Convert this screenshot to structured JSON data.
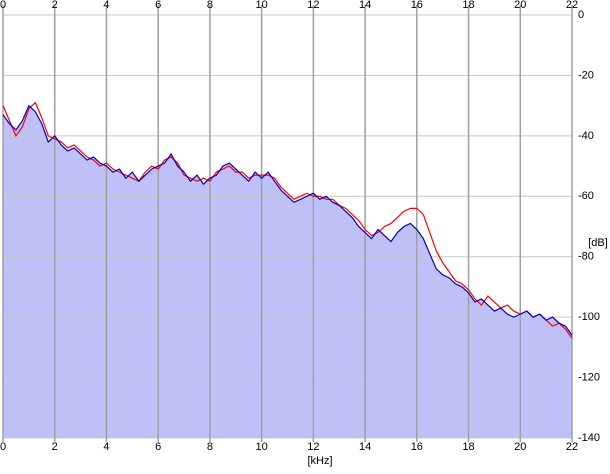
{
  "chart_data": {
    "type": "spectrum",
    "x_label": "[kHz]",
    "y_label": "[dB]",
    "xlim": [
      0,
      22
    ],
    "xticks": [
      0,
      2,
      4,
      6,
      8,
      10,
      12,
      14,
      16,
      18,
      20,
      22
    ],
    "ylim": [
      -140,
      0
    ],
    "yticks": [
      0,
      -20,
      -40,
      -60,
      -80,
      -100,
      -120,
      -140
    ],
    "grid": true,
    "fill_color": "#c0c0f8",
    "x": [
      0,
      0.25,
      0.5,
      0.75,
      1,
      1.25,
      1.5,
      1.75,
      2,
      2.25,
      2.5,
      2.75,
      3,
      3.25,
      3.5,
      3.75,
      4,
      4.25,
      4.5,
      4.75,
      5,
      5.25,
      5.5,
      5.75,
      6,
      6.25,
      6.5,
      6.75,
      7,
      7.25,
      7.5,
      7.75,
      8,
      8.25,
      8.5,
      8.75,
      9,
      9.25,
      9.5,
      9.75,
      10,
      10.25,
      10.5,
      10.75,
      11,
      11.25,
      11.5,
      11.75,
      12,
      12.25,
      12.5,
      12.75,
      13,
      13.25,
      13.5,
      13.75,
      14,
      14.25,
      14.5,
      14.75,
      15,
      15.25,
      15.5,
      15.75,
      16,
      16.25,
      16.5,
      16.75,
      17,
      17.25,
      17.5,
      17.75,
      18,
      18.25,
      18.5,
      18.75,
      19,
      19.25,
      19.5,
      19.75,
      20,
      20.25,
      20.5,
      20.75,
      21,
      21.25,
      21.5,
      21.75,
      22
    ],
    "series": [
      {
        "color": "#ff0000",
        "values": [
          -30,
          -35,
          -40,
          -37,
          -31,
          -29,
          -34,
          -40,
          -41,
          -42,
          -44,
          -43,
          -45,
          -47,
          -48,
          -50,
          -49,
          -51,
          -52,
          -53,
          -54,
          -55,
          -52,
          -50,
          -51,
          -48,
          -47,
          -49,
          -53,
          -54,
          -55,
          -54,
          -55,
          -52,
          -51,
          -50,
          -52,
          -52,
          -54,
          -53,
          -53,
          -53,
          -54,
          -57,
          -59,
          -61,
          -60,
          -59,
          -60,
          -60,
          -61,
          -61,
          -63,
          -64,
          -66,
          -68,
          -71,
          -73,
          -72,
          -70,
          -69,
          -67,
          -65,
          -64,
          -64,
          -66,
          -72,
          -78,
          -82,
          -85,
          -88,
          -89,
          -91,
          -94,
          -96,
          -93,
          -95,
          -97,
          -96,
          -98,
          -99,
          -98,
          -100,
          -99,
          -101,
          -103,
          -102,
          -104,
          -107
        ]
      },
      {
        "color": "#0000c0",
        "fill": true,
        "values": [
          -33,
          -36,
          -38,
          -35,
          -30,
          -32,
          -36,
          -42,
          -40,
          -43,
          -45,
          -44,
          -46,
          -48,
          -47,
          -49,
          -50,
          -52,
          -51,
          -54,
          -52,
          -55,
          -53,
          -51,
          -50,
          -49,
          -46,
          -50,
          -52,
          -55,
          -53,
          -56,
          -54,
          -53,
          -50,
          -49,
          -51,
          -53,
          -55,
          -52,
          -54,
          -52,
          -55,
          -58,
          -60,
          -62,
          -61,
          -60,
          -59,
          -61,
          -60,
          -62,
          -63,
          -65,
          -67,
          -70,
          -72,
          -74,
          -71,
          -73,
          -75,
          -72,
          -70,
          -69,
          -71,
          -74,
          -79,
          -84,
          -86,
          -87,
          -89,
          -90,
          -92,
          -95,
          -94,
          -96,
          -98,
          -97,
          -99,
          -100,
          -99,
          -98,
          -100,
          -99,
          -101,
          -100,
          -102,
          -103,
          -106
        ]
      }
    ]
  }
}
